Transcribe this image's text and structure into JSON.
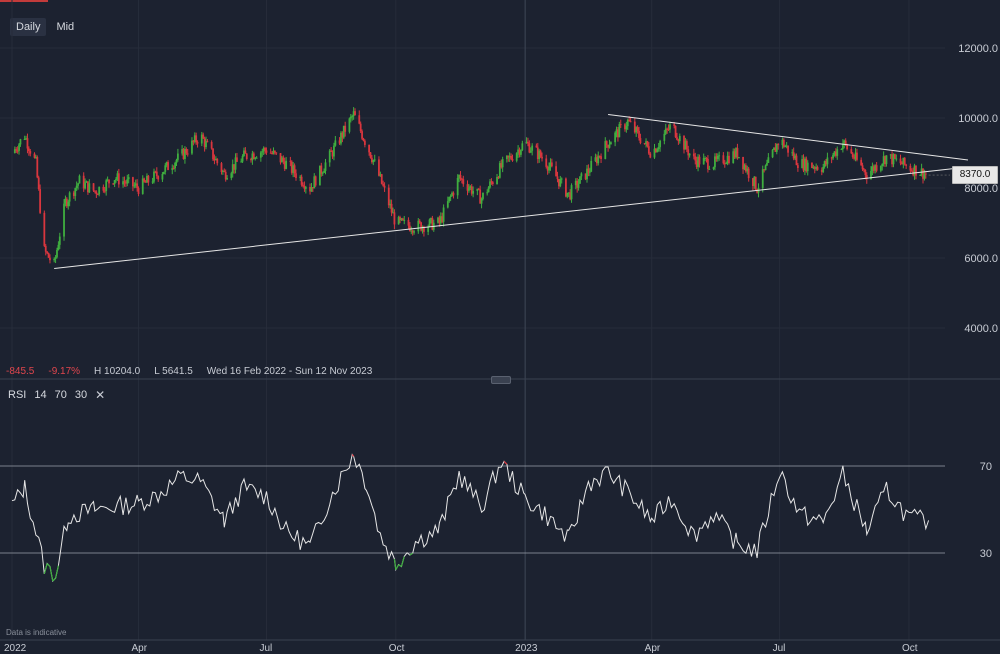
{
  "toolbar": {
    "daily_label": "Daily",
    "mid_label": "Mid"
  },
  "stats": {
    "change": "-845.5",
    "change_pct": "-9.17%",
    "high": "H 10204.0",
    "low": "L 5641.5",
    "range": "Wed 16 Feb 2022 - Sun 12 Nov 2023"
  },
  "rsi": {
    "label": "RSI",
    "period": "14",
    "upper": "70",
    "lower": "30"
  },
  "price_tag": "8370.0",
  "disclaimer": "Data is indicative",
  "colors": {
    "up": "#3fae3f",
    "down": "#d9363e",
    "background": "#1c2230",
    "line": "#e6e6e6",
    "grid": "#262c3a"
  },
  "chart_data": [
    {
      "type": "candlestick",
      "x_range": [
        "2022-01-01",
        "2023-11-12"
      ],
      "ylim": [
        3000,
        13000
      ],
      "y_ticks": [
        "12000.0",
        "10000.0",
        "8000.0",
        "6000.0",
        "4000.0"
      ],
      "y_tick_values": [
        12000,
        10000,
        8000,
        6000,
        4000
      ],
      "x_ticks": [
        "2022",
        "Apr",
        "Jul",
        "Oct",
        "2023",
        "Apr",
        "Jul",
        "Oct"
      ],
      "x_tick_dates": [
        "2022-01-01",
        "2022-04-01",
        "2022-07-01",
        "2022-10-01",
        "2023-01-01",
        "2023-04-01",
        "2023-07-01",
        "2023-10-01"
      ],
      "last_price": 8370,
      "close_path": [
        [
          "2022-01-01",
          9000
        ],
        [
          "2022-01-10",
          9500
        ],
        [
          "2022-01-18",
          8700
        ],
        [
          "2022-01-24",
          6200
        ],
        [
          "2022-01-31",
          5800
        ],
        [
          "2022-02-08",
          7600
        ],
        [
          "2022-02-18",
          8200
        ],
        [
          "2022-03-01",
          7900
        ],
        [
          "2022-03-15",
          8300
        ],
        [
          "2022-04-01",
          8000
        ],
        [
          "2022-04-15",
          8400
        ],
        [
          "2022-05-01",
          8900
        ],
        [
          "2022-05-15",
          9500
        ],
        [
          "2022-06-01",
          8400
        ],
        [
          "2022-06-15",
          8900
        ],
        [
          "2022-07-01",
          9100
        ],
        [
          "2022-07-15",
          8700
        ],
        [
          "2022-08-01",
          8000
        ],
        [
          "2022-08-15",
          8900
        ],
        [
          "2022-09-01",
          10100
        ],
        [
          "2022-09-15",
          8800
        ],
        [
          "2022-10-01",
          7000
        ],
        [
          "2022-10-15",
          6900
        ],
        [
          "2022-11-01",
          7000
        ],
        [
          "2022-11-15",
          8300
        ],
        [
          "2022-12-01",
          7700
        ],
        [
          "2022-12-15",
          8600
        ],
        [
          "2023-01-01",
          9300
        ],
        [
          "2023-01-15",
          8800
        ],
        [
          "2023-02-01",
          7800
        ],
        [
          "2023-02-15",
          8500
        ],
        [
          "2023-03-01",
          9300
        ],
        [
          "2023-03-15",
          9900
        ],
        [
          "2023-04-01",
          9000
        ],
        [
          "2023-04-15",
          9800
        ],
        [
          "2023-05-01",
          8800
        ],
        [
          "2023-05-15",
          8700
        ],
        [
          "2023-06-01",
          9000
        ],
        [
          "2023-06-15",
          8000
        ],
        [
          "2023-07-01",
          9400
        ],
        [
          "2023-07-15",
          8700
        ],
        [
          "2023-08-01",
          8600
        ],
        [
          "2023-08-15",
          9300
        ],
        [
          "2023-09-01",
          8400
        ],
        [
          "2023-09-15",
          8900
        ],
        [
          "2023-10-01",
          8600
        ],
        [
          "2023-10-15",
          8370
        ]
      ],
      "trendlines": [
        {
          "from": [
            "2022-01-31",
            5700
          ],
          "to": [
            "2023-11-12",
            8600
          ]
        },
        {
          "from": [
            "2023-03-01",
            10100
          ],
          "to": [
            "2023-11-12",
            8800
          ]
        }
      ]
    },
    {
      "type": "line",
      "title": "RSI",
      "ylim": [
        0,
        100
      ],
      "levels": [
        70,
        30
      ],
      "y_ticks": [
        "70",
        "30"
      ],
      "x_range": [
        "2022-01-01",
        "2023-11-12"
      ],
      "values": [
        [
          "2022-01-01",
          52
        ],
        [
          "2022-01-10",
          60
        ],
        [
          "2022-01-18",
          40
        ],
        [
          "2022-01-24",
          24
        ],
        [
          "2022-02-01",
          20
        ],
        [
          "2022-02-10",
          47
        ],
        [
          "2022-03-01",
          50
        ],
        [
          "2022-04-01",
          53
        ],
        [
          "2022-04-15",
          57
        ],
        [
          "2022-05-01",
          65
        ],
        [
          "2022-05-15",
          63
        ],
        [
          "2022-06-01",
          45
        ],
        [
          "2022-06-15",
          60
        ],
        [
          "2022-07-01",
          56
        ],
        [
          "2022-07-15",
          40
        ],
        [
          "2022-08-01",
          33
        ],
        [
          "2022-08-15",
          55
        ],
        [
          "2022-09-01",
          76
        ],
        [
          "2022-09-10",
          62
        ],
        [
          "2022-09-20",
          38
        ],
        [
          "2022-10-01",
          25
        ],
        [
          "2022-10-15",
          35
        ],
        [
          "2022-11-01",
          41
        ],
        [
          "2022-11-15",
          66
        ],
        [
          "2022-12-01",
          51
        ],
        [
          "2022-12-15",
          72
        ],
        [
          "2023-01-01",
          55
        ],
        [
          "2023-01-15",
          48
        ],
        [
          "2023-02-01",
          36
        ],
        [
          "2023-02-15",
          62
        ],
        [
          "2023-03-01",
          67
        ],
        [
          "2023-03-15",
          58
        ],
        [
          "2023-04-01",
          45
        ],
        [
          "2023-04-15",
          55
        ],
        [
          "2023-05-01",
          38
        ],
        [
          "2023-05-15",
          48
        ],
        [
          "2023-06-01",
          34
        ],
        [
          "2023-06-15",
          31
        ],
        [
          "2023-07-01",
          68
        ],
        [
          "2023-07-15",
          48
        ],
        [
          "2023-08-01",
          44
        ],
        [
          "2023-08-15",
          66
        ],
        [
          "2023-09-01",
          40
        ],
        [
          "2023-09-15",
          59
        ],
        [
          "2023-10-01",
          46
        ],
        [
          "2023-10-15",
          45
        ]
      ]
    }
  ]
}
